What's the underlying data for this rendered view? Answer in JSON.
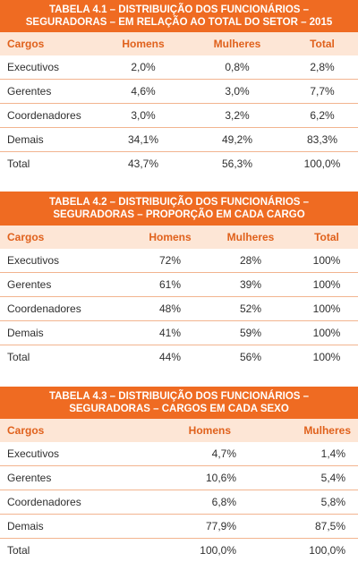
{
  "tables": [
    {
      "title_line1": "TABELA 4.1 – DISTRIBUIÇÃO DOS FUNCIONÁRIOS –",
      "title_line2": "SEGURADORAS – EM RELAÇÃO AO TOTAL DO SETOR – 2015",
      "headers": [
        "Cargos",
        "Homens",
        "Mulheres",
        "Total"
      ],
      "rows": [
        [
          "Executivos",
          "2,0%",
          "0,8%",
          "2,8%"
        ],
        [
          "Gerentes",
          "4,6%",
          "3,0%",
          "7,7%"
        ],
        [
          "Coordenadores",
          "3,0%",
          "3,2%",
          "6,2%"
        ],
        [
          "Demais",
          "34,1%",
          "49,2%",
          "83,3%"
        ],
        [
          "Total",
          "43,7%",
          "56,3%",
          "100,0%"
        ]
      ]
    },
    {
      "title_line1": "TABELA 4.2 – DISTRIBUIÇÃO DOS FUNCIONÁRIOS –",
      "title_line2": "SEGURADORAS – PROPORÇÃO EM CADA CARGO",
      "headers": [
        "Cargos",
        "Homens",
        "Mulheres",
        "Total"
      ],
      "rows": [
        [
          "Executivos",
          "72%",
          "28%",
          "100%"
        ],
        [
          "Gerentes",
          "61%",
          "39%",
          "100%"
        ],
        [
          "Coordenadores",
          "48%",
          "52%",
          "100%"
        ],
        [
          "Demais",
          "41%",
          "59%",
          "100%"
        ],
        [
          "Total",
          "44%",
          "56%",
          "100%"
        ]
      ]
    },
    {
      "title_line1": "TABELA 4.3 – DISTRIBUIÇÃO DOS FUNCIONÁRIOS –",
      "title_line2": "SEGURADORAS – CARGOS EM CADA SEXO",
      "headers": [
        "Cargos",
        "Homens",
        "Mulheres"
      ],
      "rows": [
        [
          "Executivos",
          "4,7%",
          "1,4%"
        ],
        [
          "Gerentes",
          "10,6%",
          "5,4%"
        ],
        [
          "Coordenadores",
          "6,8%",
          "5,8%"
        ],
        [
          "Demais",
          "77,9%",
          "87,5%"
        ],
        [
          "Total",
          "100,0%",
          "100,0%"
        ]
      ]
    }
  ]
}
